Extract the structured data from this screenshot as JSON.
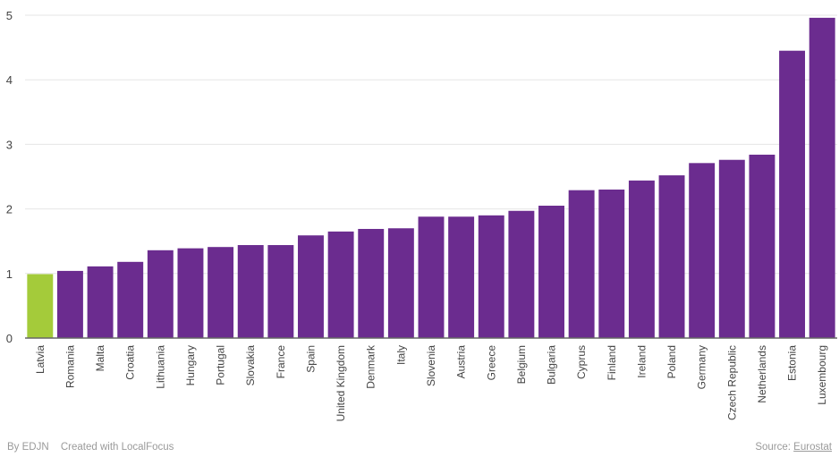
{
  "chart_data": {
    "type": "bar",
    "title": "",
    "xlabel": "",
    "ylabel": "",
    "ylim": [
      0,
      5
    ],
    "yticks": [
      0,
      1,
      2,
      3,
      4,
      5
    ],
    "grid": true,
    "categories": [
      "Latvia",
      "Romania",
      "Malta",
      "Croatia",
      "Lithuania",
      "Hungary",
      "Portugal",
      "Slovakia",
      "France",
      "Spain",
      "United Kingdom",
      "Denmark",
      "Italy",
      "Slovenia",
      "Austria",
      "Greece",
      "Belgium",
      "Bulgaria",
      "Cyprus",
      "Finland",
      "Ireland",
      "Poland",
      "Germany",
      "Czech Republic",
      "Netherlands",
      "Estonia",
      "Luxembourg"
    ],
    "values": [
      0.99,
      1.04,
      1.11,
      1.18,
      1.36,
      1.39,
      1.41,
      1.44,
      1.44,
      1.59,
      1.65,
      1.69,
      1.7,
      1.88,
      1.88,
      1.9,
      1.97,
      2.05,
      2.29,
      2.3,
      2.44,
      2.52,
      2.71,
      2.76,
      2.84,
      4.45,
      4.96
    ],
    "highlight": "Latvia",
    "colors": {
      "bar": "#6b2c8f",
      "highlight": "#a4cb3a",
      "grid": "#e6e6e6",
      "axis": "#666666",
      "text": "#444444"
    }
  },
  "footer": {
    "by": "By EDJN",
    "created": "Created with LocalFocus",
    "source_label": "Source:",
    "source_link": "Eurostat"
  }
}
